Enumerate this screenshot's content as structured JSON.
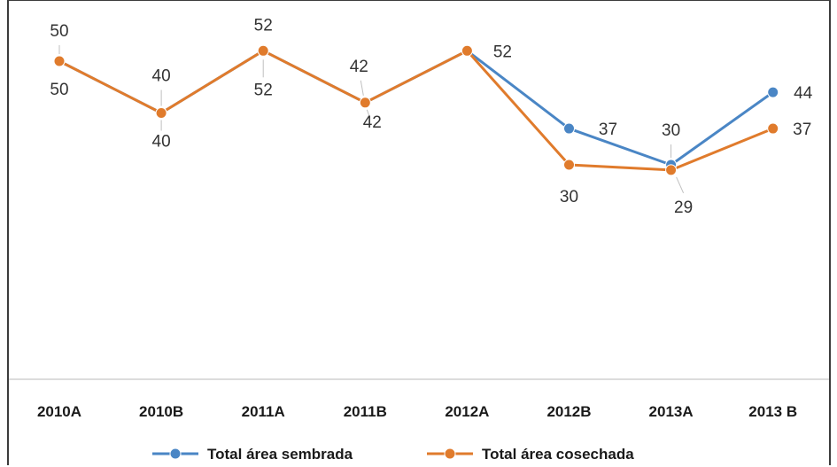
{
  "chart_data": {
    "type": "line",
    "categories": [
      "2010A",
      "2010B",
      "2011A",
      "2011B",
      "2012A",
      "2012B",
      "2013A",
      "2013 B"
    ],
    "series": [
      {
        "name": "Total área sembrada",
        "values": [
          50,
          40,
          52,
          42,
          52,
          37,
          30,
          44
        ],
        "color": "#4a86c5"
      },
      {
        "name": "Total área  cosechada",
        "values": [
          50,
          40,
          52,
          42,
          52,
          30,
          29,
          37
        ],
        "color": "#e07b2c"
      }
    ],
    "ylim": [
      0,
      60
    ],
    "grid": false,
    "legend_position": "bottom",
    "axis_line_color": "#d0d0d0"
  }
}
